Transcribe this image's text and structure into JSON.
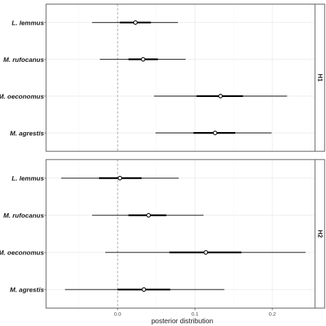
{
  "chart_data": [
    {
      "type": "interval",
      "facet": "H1",
      "categories": [
        "L. lemmus",
        "M. rufocanus",
        "M. oeconomus",
        "M. agrestis"
      ],
      "series": [
        {
          "values": [
            {
              "median": 0.023,
              "inner": [
                0.003,
                0.043
              ],
              "outer": [
                -0.033,
                0.078
              ]
            },
            {
              "median": 0.033,
              "inner": [
                0.014,
                0.052
              ],
              "outer": [
                -0.023,
                0.088
              ]
            },
            {
              "median": 0.133,
              "inner": [
                0.102,
                0.162
              ],
              "outer": [
                0.047,
                0.219
              ]
            },
            {
              "median": 0.126,
              "inner": [
                0.098,
                0.152
              ],
              "outer": [
                0.049,
                0.199
              ]
            }
          ]
        }
      ]
    },
    {
      "type": "interval",
      "facet": "H2",
      "categories": [
        "L. lemmus",
        "M. rufocanus",
        "M. oeconomus",
        "M. agrestis"
      ],
      "series": [
        {
          "values": [
            {
              "median": 0.003,
              "inner": [
                -0.024,
                0.031
              ],
              "outer": [
                -0.073,
                0.079
              ]
            },
            {
              "median": 0.04,
              "inner": [
                0.014,
                0.063
              ],
              "outer": [
                -0.033,
                0.111
              ]
            },
            {
              "median": 0.114,
              "inner": [
                0.067,
                0.16
              ],
              "outer": [
                -0.016,
                0.243
              ]
            },
            {
              "median": 0.034,
              "inner": [
                0.0,
                0.068
              ],
              "outer": [
                -0.068,
                0.138
              ]
            }
          ]
        }
      ]
    }
  ],
  "axes": {
    "xlabel": "posterior distribution",
    "xticks": [
      "0.0",
      "0.1",
      "0.2"
    ],
    "xtick_values": [
      0.0,
      0.1,
      0.2
    ],
    "xlim": [
      -0.09,
      0.255
    ],
    "reference_line": 0.0,
    "grid": true
  },
  "colors": {
    "interval": "#000000",
    "point_fill": "#ffffff",
    "reference_line": "#8c8c8c",
    "grid_major": "#ebebeb",
    "grid_minor": "#f5f5f5",
    "panel_border": "#4d4d4d",
    "strip_background": "#ffffff"
  }
}
